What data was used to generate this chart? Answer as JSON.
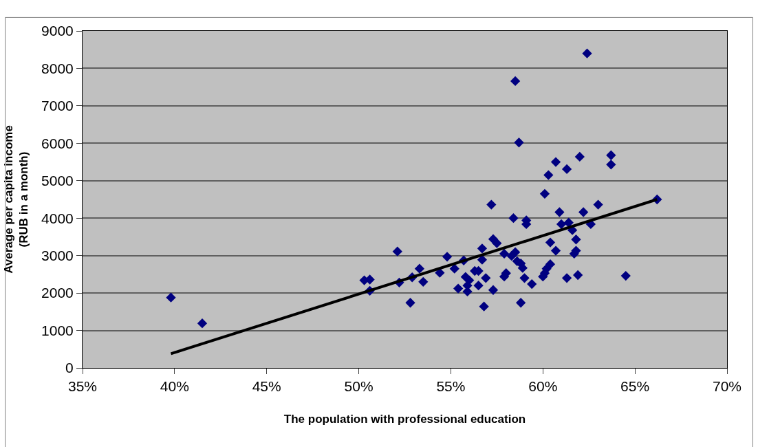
{
  "chart_data": {
    "type": "scatter",
    "xlabel": "The population with professional education",
    "ylabel": "Average per capita income\n(RUB in a month)",
    "xlim": [
      35,
      70
    ],
    "xticks": [
      {
        "value": 35,
        "label": "35%"
      },
      {
        "value": 40,
        "label": "40%"
      },
      {
        "value": 45,
        "label": "45%"
      },
      {
        "value": 50,
        "label": "50%"
      },
      {
        "value": 55,
        "label": "55%"
      },
      {
        "value": 60,
        "label": "60%"
      },
      {
        "value": 65,
        "label": "65%"
      },
      {
        "value": 70,
        "label": "70%"
      }
    ],
    "ylim": [
      0,
      9000
    ],
    "yticks": [
      0,
      1000,
      2000,
      3000,
      4000,
      5000,
      6000,
      7000,
      8000,
      9000
    ],
    "grid": "y",
    "series": [
      {
        "marker": "diamond",
        "color": "#000080",
        "x": [
          39.8,
          41.5,
          58.4,
          52.1,
          54.8,
          50.3,
          50.6,
          50.6,
          52.2,
          52.9,
          53.3,
          53.5,
          52.8,
          54.4,
          55.2,
          55.7,
          56.7,
          56.7,
          57.3,
          57.5,
          55.8,
          56.0,
          55.9,
          56.3,
          56.5,
          55.4,
          55.9,
          56.5,
          56.9,
          57.3,
          56.8,
          58.8,
          57.9,
          58.3,
          58.6,
          58.5,
          58.8,
          58.9,
          58.0,
          57.9,
          62.4,
          58.5,
          58.7,
          60.7,
          62.0,
          63.7,
          63.7,
          61.3,
          60.3,
          60.1,
          57.2,
          66.2,
          63.0,
          59.1,
          59.1,
          60.9,
          62.2,
          61.0,
          61.4,
          61.6,
          62.6,
          61.8,
          61.8,
          61.7,
          60.4,
          60.7,
          60.4,
          60.2,
          60.1,
          60.0,
          59.0,
          59.4,
          61.3,
          61.9,
          64.5
        ],
        "values": [
          1880,
          1190,
          4000,
          3110,
          2970,
          2340,
          2360,
          2060,
          2280,
          2420,
          2650,
          2300,
          1740,
          2540,
          2650,
          2870,
          3190,
          2890,
          3440,
          3330,
          2430,
          2340,
          2200,
          2590,
          2590,
          2120,
          2040,
          2200,
          2400,
          2080,
          1640,
          1740,
          3050,
          2990,
          2850,
          3090,
          2790,
          2670,
          2530,
          2440,
          8400,
          7660,
          6020,
          5500,
          5640,
          5680,
          5430,
          5310,
          5150,
          4650,
          4360,
          4500,
          4360,
          3940,
          3840,
          4160,
          4160,
          3840,
          3880,
          3680,
          3840,
          3430,
          3130,
          3050,
          3350,
          3130,
          2770,
          2650,
          2530,
          2440,
          2400,
          2240,
          2400,
          2480,
          2460
        ]
      },
      {
        "type": "line",
        "color": "#000000",
        "x": [
          39.8,
          66.2
        ],
        "values": [
          380,
          4500
        ]
      }
    ]
  }
}
